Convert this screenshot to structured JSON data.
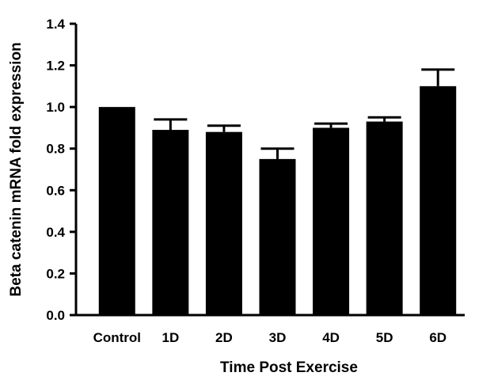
{
  "chart_data": {
    "type": "bar",
    "categories": [
      "Control",
      "1D",
      "2D",
      "3D",
      "4D",
      "5D",
      "6D"
    ],
    "values": [
      1.0,
      0.89,
      0.88,
      0.75,
      0.9,
      0.93,
      1.1
    ],
    "error": [
      0.0,
      0.05,
      0.03,
      0.05,
      0.02,
      0.02,
      0.08
    ],
    "xlabel": "Time Post Exercise",
    "ylabel": "Beta catenin mRNA fold expression",
    "ylim": [
      0,
      1.4
    ],
    "yticks": [
      "0.0",
      "0.2",
      "0.4",
      "0.6",
      "0.8",
      "1.0",
      "1.2",
      "1.4"
    ],
    "bar_color": "#000000",
    "grid": false,
    "legend": "none"
  }
}
